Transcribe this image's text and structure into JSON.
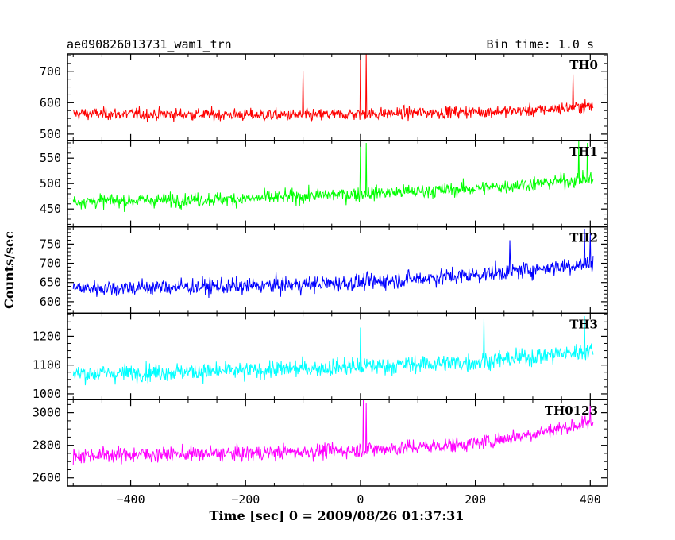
{
  "header": {
    "source_name": "ae090826013731_wam1_trn",
    "bin_time": "Bin time: 1.0 s"
  },
  "chart_data": {
    "type": "line",
    "xlabel": "Time [sec] 0 = 2009/08/26 01:37:31",
    "ylabel": "Counts/sec",
    "xlim": [
      -510,
      430
    ],
    "xticks": [
      -400,
      -200,
      0,
      200,
      400
    ],
    "xtick_labels": [
      "−400",
      "−200",
      "0",
      "200",
      "400"
    ],
    "x_range": [
      -500,
      405
    ],
    "bin": 1.0,
    "series": [
      {
        "name": "TH0",
        "color": "#ff0000",
        "ylim": [
          480,
          755
        ],
        "yticks": [
          500,
          600,
          700
        ],
        "trend": [
          [
            -500,
            565
          ],
          [
            -100,
            560
          ],
          [
            100,
            568
          ],
          [
            300,
            575
          ],
          [
            405,
            590
          ]
        ],
        "noise": 25,
        "peaks": [
          [
            -100,
            700
          ],
          [
            0,
            755
          ],
          [
            10,
            755
          ],
          [
            370,
            690
          ]
        ]
      },
      {
        "name": "TH1",
        "color": "#00ff00",
        "ylim": [
          415,
          585
        ],
        "yticks": [
          450,
          500,
          550
        ],
        "trend": [
          [
            -500,
            465
          ],
          [
            -200,
            470
          ],
          [
            0,
            480
          ],
          [
            200,
            490
          ],
          [
            405,
            510
          ]
        ],
        "noise": 18,
        "peaks": [
          [
            0,
            585
          ],
          [
            10,
            580
          ],
          [
            380,
            585
          ],
          [
            395,
            580
          ]
        ]
      },
      {
        "name": "TH2",
        "color": "#0000ff",
        "ylim": [
          570,
          795
        ],
        "yticks": [
          600,
          650,
          700,
          750
        ],
        "trend": [
          [
            -500,
            635
          ],
          [
            -200,
            640
          ],
          [
            0,
            650
          ],
          [
            200,
            670
          ],
          [
            405,
            700
          ]
        ],
        "noise": 28,
        "peaks": [
          [
            260,
            760
          ],
          [
            390,
            790
          ],
          [
            400,
            780
          ]
        ]
      },
      {
        "name": "TH3",
        "color": "#00ffff",
        "ylim": [
          980,
          1280
        ],
        "yticks": [
          1000,
          1100,
          1200
        ],
        "trend": [
          [
            -500,
            1070
          ],
          [
            -200,
            1080
          ],
          [
            0,
            1095
          ],
          [
            200,
            1110
          ],
          [
            405,
            1150
          ]
        ],
        "noise": 40,
        "peaks": [
          [
            0,
            1230
          ],
          [
            215,
            1260
          ],
          [
            390,
            1270
          ]
        ]
      },
      {
        "name": "TH0123",
        "color": "#ff00ff",
        "ylim": [
          2550,
          3080
        ],
        "yticks": [
          2600,
          2800,
          3000
        ],
        "trend": [
          [
            -500,
            2740
          ],
          [
            -200,
            2750
          ],
          [
            0,
            2770
          ],
          [
            200,
            2810
          ],
          [
            405,
            2940
          ]
        ],
        "noise": 60,
        "peaks": [
          [
            5,
            3080
          ],
          [
            10,
            3060
          ],
          [
            400,
            3060
          ]
        ]
      }
    ]
  }
}
